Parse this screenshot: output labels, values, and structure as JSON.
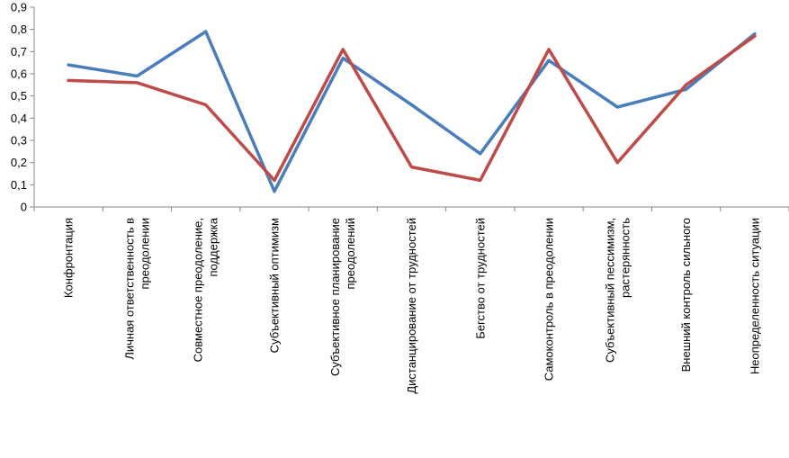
{
  "chart_data": {
    "type": "line",
    "title": "",
    "xlabel": "",
    "ylabel": "",
    "ylim": [
      0,
      0.9
    ],
    "yticks": [
      {
        "value": 0,
        "label": "0"
      },
      {
        "value": 0.1,
        "label": "0,1"
      },
      {
        "value": 0.2,
        "label": "0,2"
      },
      {
        "value": 0.3,
        "label": "0,3"
      },
      {
        "value": 0.4,
        "label": "0,4"
      },
      {
        "value": 0.5,
        "label": "0,5"
      },
      {
        "value": 0.6,
        "label": "0,6"
      },
      {
        "value": 0.7,
        "label": "0,7"
      },
      {
        "value": 0.8,
        "label": "0,8"
      },
      {
        "value": 0.9,
        "label": "0,9"
      }
    ],
    "grid": false,
    "legend": "none",
    "categories": [
      [
        "Конфронтация"
      ],
      [
        "Личная ответственность в",
        "преодолении"
      ],
      [
        "Совместное преодоление,",
        "поддержка"
      ],
      [
        "Субъективный оптимизм"
      ],
      [
        "Субъективное планирование",
        "преодолений"
      ],
      [
        "Дистанцирование от трудностей"
      ],
      [
        "Бегство от трудностей"
      ],
      [
        "Самоконтроль в преодолении"
      ],
      [
        "Субъективный пессимизм,",
        "растерянность"
      ],
      [
        "Внешний контроль сильного"
      ],
      [
        "Неопределенность ситуации"
      ]
    ],
    "series": [
      {
        "color": "#4a7ebb",
        "values": [
          0.64,
          0.59,
          0.79,
          0.07,
          0.67,
          0.46,
          0.24,
          0.66,
          0.45,
          0.53,
          0.78
        ]
      },
      {
        "color": "#be4b48",
        "values": [
          0.57,
          0.56,
          0.46,
          0.12,
          0.71,
          0.18,
          0.12,
          0.71,
          0.2,
          0.55,
          0.77
        ]
      }
    ]
  }
}
